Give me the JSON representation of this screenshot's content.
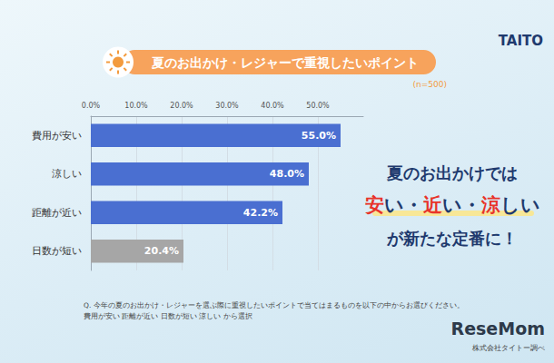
{
  "chart_data": {
    "type": "bar",
    "orientation": "horizontal",
    "title": "夏のお出かけ・レジャーで重視したいポイント",
    "subtitle": "(n=500)",
    "categories": [
      "費用が安い",
      "涼しい",
      "距離が近い",
      "日数が短い"
    ],
    "values": [
      55.0,
      48.0,
      42.2,
      20.4
    ],
    "value_labels": [
      "55.0%",
      "48.0%",
      "42.2%",
      "20.4%"
    ],
    "colors": [
      "#4a6fd1",
      "#4a6fd1",
      "#4a6fd1",
      "#a6a6a6"
    ],
    "data_labels": true,
    "xlim": [
      0,
      60
    ],
    "xticks": [
      {
        "value": 0,
        "label": "0.0%"
      },
      {
        "value": 10,
        "label": "10.0%"
      },
      {
        "value": 20,
        "label": "20.0%"
      },
      {
        "value": 30,
        "label": "30.0%"
      },
      {
        "value": 40,
        "label": "40.0%"
      },
      {
        "value": 50,
        "label": "50.0%"
      }
    ],
    "grid": true,
    "annotations": [
      [
        {
          "text": "夏のお出かけでは",
          "color": "#1f3a6e"
        }
      ],
      [
        {
          "text": "安",
          "color": "#e8332a"
        },
        {
          "text": "い・",
          "color": "#1f3a6e"
        },
        {
          "text": "近",
          "color": "#e8332a"
        },
        {
          "text": "い・",
          "color": "#1f3a6e"
        },
        {
          "text": "涼",
          "color": "#e8332a"
        },
        {
          "text": "しい",
          "color": "#1f3a6e"
        }
      ],
      [
        {
          "text": "が新たな定番に！",
          "color": "#1f3a6e"
        }
      ]
    ],
    "footnote": [
      "Q. 今年の夏のお出かけ・レジャーを選ぶ際に重視したいポイントで当てはまるものを以下の中からお選びください。",
      "費用が安い 距離が近い 日数が短い 涼しい から選択"
    ],
    "source": "株式会社タイトー調べ",
    "logo": "TAITO",
    "watermark": "ReseMom"
  }
}
